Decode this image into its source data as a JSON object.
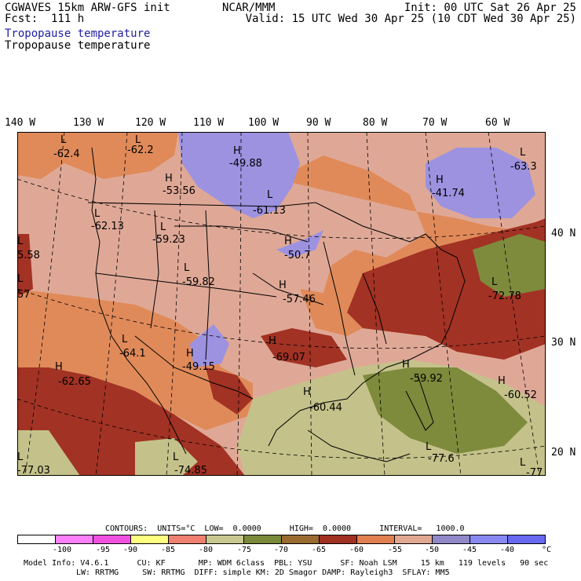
{
  "header": {
    "line1_left": "CGWAVES 15km ARW-GFS init",
    "line1_center": "NCAR/MMM",
    "line1_right": "Init: 00 UTC Sat 26 Apr 25",
    "line2_left": "Fcst:  111 h",
    "line2_right": "Valid: 15 UTC Wed 30 Apr 25 (10 CDT Wed 30 Apr 25)",
    "variable_blue": "Tropopause temperature",
    "variable_black": "Tropopause temperature"
  },
  "longitudes": [
    "140 W",
    "130 W",
    "120 W",
    "110 W",
    "100 W",
    "90 W",
    "80 W",
    "70 W",
    "60 W"
  ],
  "latitudes": [
    "40 N",
    "30 N",
    "20 N"
  ],
  "map_labels": [
    {
      "sym": "L",
      "value": "-62.4"
    },
    {
      "sym": "L",
      "value": "-62.2"
    },
    {
      "sym": "H",
      "value": "-49.88"
    },
    {
      "sym": "H",
      "value": "-53.56"
    },
    {
      "sym": "L",
      "value": "-61.13"
    },
    {
      "sym": "H",
      "value": "-41.74"
    },
    {
      "sym": "L",
      "value": "-63.3"
    },
    {
      "sym": "L",
      "value": "-62.13"
    },
    {
      "sym": "L",
      "value": "-59.23"
    },
    {
      "sym": "L",
      "value": "5.58"
    },
    {
      "sym": "H",
      "value": "-50.7"
    },
    {
      "sym": "L",
      "value": "-59.82"
    },
    {
      "sym": "H",
      "value": "-57.46"
    },
    {
      "sym": "L",
      "value": "57"
    },
    {
      "sym": "L",
      "value": "-72.78"
    },
    {
      "sym": "L",
      "value": "-64.1"
    },
    {
      "sym": "H",
      "value": "-49.15"
    },
    {
      "sym": "H",
      "value": "-69.07"
    },
    {
      "sym": "H",
      "value": "-62.65"
    },
    {
      "sym": "H",
      "value": "-59.92"
    },
    {
      "sym": "H",
      "value": "-60.52"
    },
    {
      "sym": "H",
      "value": "-60.44"
    },
    {
      "sym": "L",
      "value": "-77.03"
    },
    {
      "sym": "L",
      "value": "-74.85"
    },
    {
      "sym": "L",
      "value": "-77.6"
    },
    {
      "sym": "L",
      "value": "-77"
    }
  ],
  "contours_line": "CONTOURS:  UNITS=°C  LOW=  0.0000      HIGH=  0.0000      INTERVAL=   1000.0",
  "legend": {
    "ticks": [
      "-100",
      "-95",
      "-90",
      "-85",
      "-80",
      "-75",
      "-70",
      "-65",
      "-60",
      "-55",
      "-50",
      "-45",
      "-40",
      "°C"
    ],
    "colors": [
      "#ffffff",
      "#ff80ff",
      "#f050e0",
      "#ffff80",
      "#f08070",
      "#c8c890",
      "#7a8a3a",
      "#9a6a30",
      "#a03020",
      "#e08050",
      "#e0a890",
      "#9088c8",
      "#8888f0",
      "#6868f0"
    ]
  },
  "footer": {
    "line1": "Model Info: V4.6.1      CU: KF       MP: WDM 6class  PBL: YSU      SF: Noah LSM     15 km   119 levels   90 sec",
    "line2": "LW: RRTMG     SW: RRTMG  DIFF: simple KM: 2D Smagor DAMP: Rayleigh3  SFLAY: MM5"
  }
}
